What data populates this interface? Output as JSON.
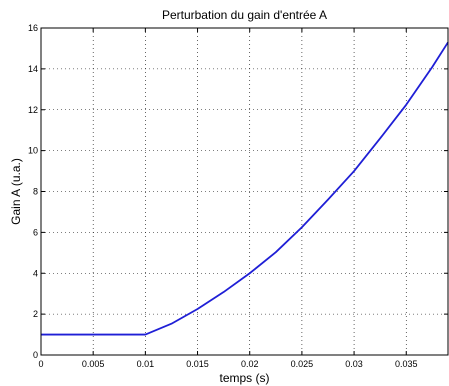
{
  "chart_data": {
    "type": "line",
    "title": "Perturbation du gain d'entrée A",
    "xlabel": "temps (s)",
    "ylabel": "Gain A (u.a.)",
    "xlim": [
      0,
      0.039
    ],
    "ylim": [
      0,
      16
    ],
    "x_ticks": [
      0,
      0.005,
      0.01,
      0.015,
      0.02,
      0.025,
      0.03,
      0.035
    ],
    "x_tick_labels": [
      "0",
      "0.005",
      "0.01",
      "0.015",
      "0.02",
      "0.025",
      "0.03",
      "0.035"
    ],
    "y_ticks": [
      0,
      2,
      4,
      6,
      8,
      10,
      12,
      14,
      16
    ],
    "y_tick_labels": [
      "0",
      "2",
      "4",
      "6",
      "8",
      "10",
      "12",
      "14",
      "16"
    ],
    "grid": true,
    "grid_style": "dotted",
    "line_color": "#1f1fd6",
    "series": [
      {
        "x": [
          0,
          0.005,
          0.01,
          0.0125,
          0.015,
          0.0175,
          0.02,
          0.0225,
          0.025,
          0.0275,
          0.03,
          0.0325,
          0.035,
          0.0375,
          0.039
        ],
        "y": [
          1,
          1,
          1,
          1.53,
          2.25,
          3.08,
          4.0,
          5.03,
          6.25,
          7.6,
          9.0,
          10.6,
          12.25,
          14.1,
          15.3
        ]
      }
    ]
  }
}
